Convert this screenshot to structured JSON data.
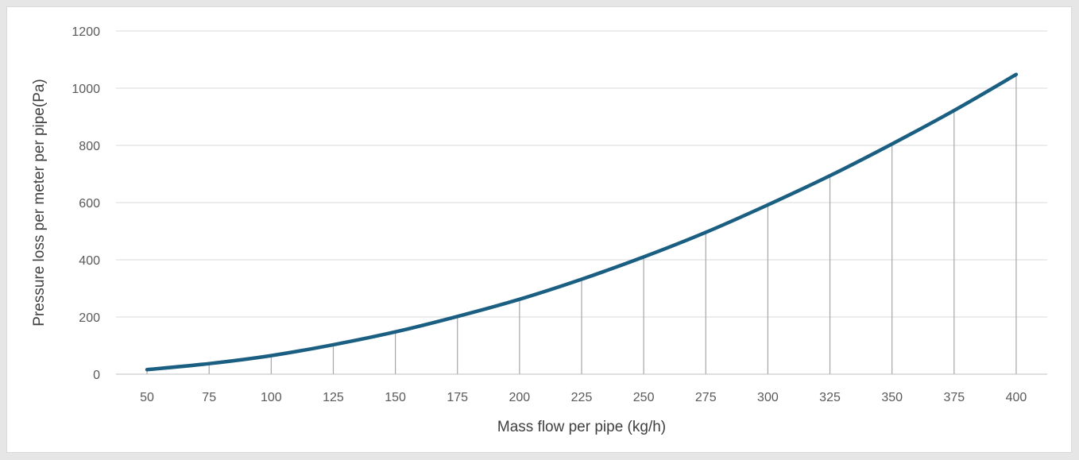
{
  "chart_data": {
    "type": "line",
    "title": "",
    "xlabel": "Mass flow per pipe (kg/h)",
    "ylabel": "Pressure loss per meter per pipe(Pa)",
    "categories": [
      "50",
      "75",
      "100",
      "125",
      "150",
      "175",
      "200",
      "225",
      "250",
      "275",
      "300",
      "325",
      "350",
      "375",
      "400"
    ],
    "x": [
      50,
      75,
      100,
      125,
      150,
      175,
      200,
      225,
      250,
      275,
      300,
      325,
      350,
      375,
      400
    ],
    "series": [
      {
        "values": [
          16,
          37,
          65,
          103,
          148,
          202,
          262,
          332,
          410,
          496,
          592,
          694,
          805,
          922,
          1048
        ]
      }
    ],
    "drop_lines": true,
    "ylim": [
      0,
      1200
    ],
    "yticks": [
      0,
      200,
      400,
      600,
      800,
      1000,
      1200
    ],
    "grid": "horizontal",
    "legend": "none",
    "colors": {
      "line": "#1a5f82",
      "grid": "#d9d9d9",
      "drop_line": "#a6a6a6",
      "axis": "#bfbfbf"
    }
  }
}
